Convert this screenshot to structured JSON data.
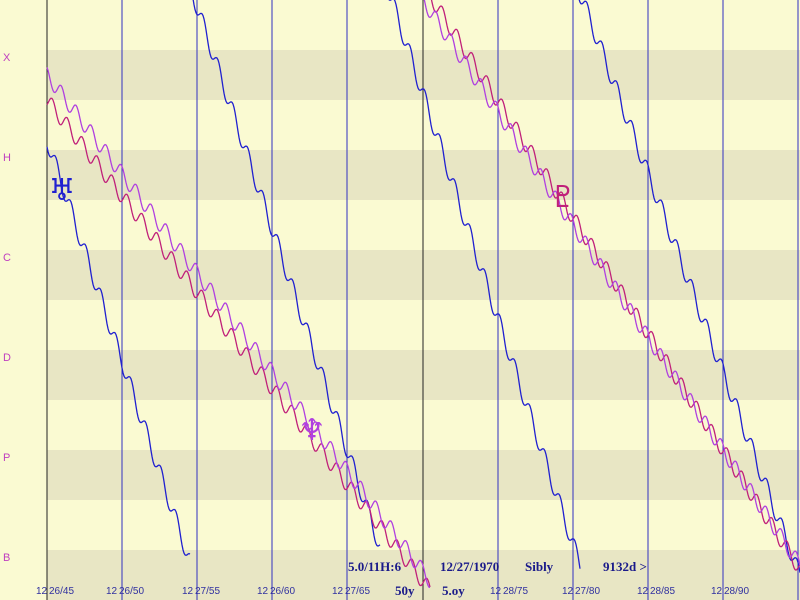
{
  "y_labels": [
    "X",
    "H",
    "C",
    "D",
    "P",
    "B"
  ],
  "x_labels": [
    {
      "hour": "12",
      "date": "26/45"
    },
    {
      "hour": "12",
      "date": "26/50"
    },
    {
      "hour": "12",
      "date": "27/55"
    },
    {
      "hour": "12",
      "date": "26/60"
    },
    {
      "hour": "12",
      "date": "27/65"
    },
    {
      "hour": "12",
      "date": "28/75"
    },
    {
      "hour": "12",
      "date": "27/80"
    },
    {
      "hour": "12",
      "date": "28/85"
    },
    {
      "hour": "12",
      "date": "28/90"
    }
  ],
  "symbols": [
    "♅",
    "♆",
    "♇"
  ],
  "status": {
    "position": "5.0/11H:6",
    "date": "12/27/1970",
    "name": "Sibly",
    "span": "9132d >",
    "step_a": "50y",
    "step_b": "5.oy"
  }
}
